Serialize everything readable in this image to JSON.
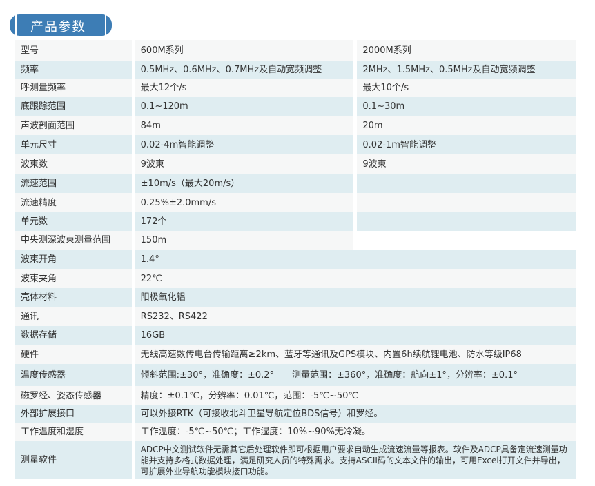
{
  "title": "产品参数",
  "colors": {
    "banner": "#3d7db5",
    "row_alt": "#dfedf1",
    "row": "#f6f7f7"
  },
  "rows": [
    {
      "label": "型号",
      "v1": "600M系列",
      "v2": "2000M系列"
    },
    {
      "label": "频率",
      "v1": "0.5MHz、0.6MHz、0.7MHz及自动宽频调整",
      "v2": "2MHz、1.5MHz、0.5MHz及自动宽频调整"
    },
    {
      "label": "呼测量频率",
      "v1": "最大12个/s",
      "v2": "最大10个/s"
    },
    {
      "label": "底跟踪范围",
      "v1": "0.1~120m",
      "v2": "0.1~30m"
    },
    {
      "label": "声波剖面范围",
      "v1": "84m",
      "v2": "20m"
    },
    {
      "label": "单元尺寸",
      "v1": "0.02-4m智能调整",
      "v2": "0.02-1m智能调整"
    },
    {
      "label": "波束数",
      "v1": "9波束",
      "v2": "9波束"
    },
    {
      "label": "流速范围",
      "v1": "±10m/s（最大20m/s）",
      "v2": ""
    },
    {
      "label": "流速精度",
      "v1": "0.25%±2.0mm/s",
      "v2": ""
    },
    {
      "label": "单元数",
      "v1": "172个",
      "v2": ""
    },
    {
      "label": "中央测深波束测量范围",
      "v1": "150m",
      "v2": ""
    },
    {
      "label": "波束开角",
      "v": "1.4°"
    },
    {
      "label": "波束夹角",
      "v": "22℃"
    },
    {
      "label": "壳体材料",
      "v": "阳极氧化铝"
    },
    {
      "label": "通讯",
      "v": "RS232、RS422"
    },
    {
      "label": "数据存储",
      "v": "16GB"
    },
    {
      "label": "硬件",
      "v": "无线高速数传电台传输距离≥2km、蓝牙等通讯及GPS模块、内置6h续航锂电池、防水等级IP68"
    },
    {
      "label": "温度传感器",
      "v": "倾斜范围:±30°，准确度：±0.2°　　测量范围：±360°，准确度：航向±1°，分辨率：±0.1°"
    },
    {
      "label": "磁罗经、姿态传感器",
      "v": "精度：±0.1℃，分辨率：0.01℃，范围：-5℃~50℃"
    },
    {
      "label": "外部扩展接口",
      "v": "可以外接RTK（可接收北斗卫星导航定位BDS信号）和罗经。"
    },
    {
      "label": "工作温度和湿度",
      "v": "工作温度：-5℃~50℃；工作湿度：10%~90%无冷凝。"
    },
    {
      "label": "测量软件",
      "v": "ADCP中文测试软件无需其它后处理软件即可根据用户要求自动生成流速流量等报表。软件及ADCP具备定流速测量功能并支持多格式数据处理，满足研究人员的特殊需求。支持ASCII码的文本文件的输出，可用Excel打开文件并导出，可扩展外业导航功能模块接口功能。"
    }
  ]
}
